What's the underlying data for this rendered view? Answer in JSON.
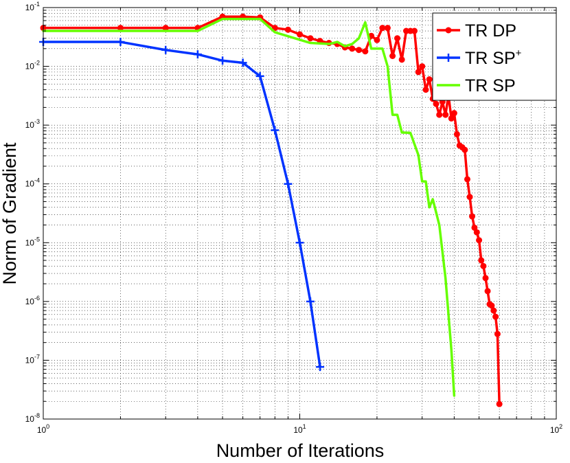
{
  "chart_data": {
    "type": "line",
    "xlabel": "Number of Iterations",
    "ylabel": "Norm of Gradient",
    "xscale": "log",
    "yscale": "log",
    "xlim": [
      1,
      100
    ],
    "ylim": [
      1e-08,
      0.1
    ],
    "grid": true,
    "legend_position": "top-right",
    "x_ticks": [
      {
        "value": 1,
        "base": "10",
        "exp": "0"
      },
      {
        "value": 10,
        "base": "10",
        "exp": "1"
      },
      {
        "value": 100,
        "base": "10",
        "exp": "2"
      }
    ],
    "y_ticks": [
      {
        "value": 1e-08,
        "base": "10",
        "exp": "-8"
      },
      {
        "value": 1e-07,
        "base": "10",
        "exp": "-7"
      },
      {
        "value": 1e-06,
        "base": "10",
        "exp": "-6"
      },
      {
        "value": 1e-05,
        "base": "10",
        "exp": "-5"
      },
      {
        "value": 0.0001,
        "base": "10",
        "exp": "-4"
      },
      {
        "value": 0.001,
        "base": "10",
        "exp": "-3"
      },
      {
        "value": 0.01,
        "base": "10",
        "exp": "-2"
      },
      {
        "value": 0.1,
        "base": "10",
        "exp": "-1"
      }
    ],
    "series": [
      {
        "name": "TR DP",
        "label_main": "TR DP",
        "label_sup": "",
        "color": "#ff0000",
        "marker": "dot",
        "points": [
          [
            1,
            0.045
          ],
          [
            2,
            0.045
          ],
          [
            3,
            0.045
          ],
          [
            4,
            0.045
          ],
          [
            5,
            0.07
          ],
          [
            6,
            0.07
          ],
          [
            7,
            0.068
          ],
          [
            8,
            0.045
          ],
          [
            9,
            0.042
          ],
          [
            10,
            0.035
          ],
          [
            11,
            0.03
          ],
          [
            12,
            0.027
          ],
          [
            13,
            0.025
          ],
          [
            14,
            0.024
          ],
          [
            15,
            0.021
          ],
          [
            16,
            0.02
          ],
          [
            17,
            0.019
          ],
          [
            18,
            0.018
          ],
          [
            19,
            0.033
          ],
          [
            20,
            0.028
          ],
          [
            21,
            0.045
          ],
          [
            22,
            0.045
          ],
          [
            23,
            0.015
          ],
          [
            24,
            0.03
          ],
          [
            25,
            0.013
          ],
          [
            26,
            0.04
          ],
          [
            27,
            0.04
          ],
          [
            28,
            0.04
          ],
          [
            29,
            0.008
          ],
          [
            30,
            0.01
          ],
          [
            31,
            0.004
          ],
          [
            32,
            0.006
          ],
          [
            33,
            0.0028
          ],
          [
            34,
            0.0023
          ],
          [
            35,
            0.0015
          ],
          [
            36,
            0.0025
          ],
          [
            37,
            0.0015
          ],
          [
            38,
            0.0032
          ],
          [
            39,
            0.0013
          ],
          [
            40,
            0.0016
          ],
          [
            41,
            0.0007
          ],
          [
            42,
            0.00045
          ],
          [
            43,
            0.00042
          ],
          [
            44,
            0.00038
          ],
          [
            45,
            0.00012
          ],
          [
            46,
            6e-05
          ],
          [
            47,
            2.8e-05
          ],
          [
            48,
            1.8e-05
          ],
          [
            49,
            1.5e-05
          ],
          [
            50,
            1.1e-05
          ],
          [
            51,
            5e-06
          ],
          [
            52,
            4e-06
          ],
          [
            53,
            2.5e-06
          ],
          [
            54,
            1.5e-06
          ],
          [
            55,
            9e-07
          ],
          [
            56,
            8.5e-07
          ],
          [
            57,
            7e-07
          ],
          [
            58,
            5.5e-07
          ],
          [
            59,
            2.8e-07
          ],
          [
            60,
            1.8e-08
          ]
        ]
      },
      {
        "name": "TR SP+",
        "label_main": "TR SP",
        "label_sup": "+",
        "color": "#0033ff",
        "marker": "plus",
        "points": [
          [
            1,
            0.026
          ],
          [
            2,
            0.026
          ],
          [
            3,
            0.019
          ],
          [
            4,
            0.016
          ],
          [
            5,
            0.0125
          ],
          [
            6,
            0.0115
          ],
          [
            7,
            0.0068
          ],
          [
            8,
            0.00082
          ],
          [
            9,
            0.0001
          ],
          [
            10,
            1e-05
          ],
          [
            11,
            1e-06
          ],
          [
            12,
            7.7e-08
          ]
        ]
      },
      {
        "name": "TR SP",
        "label_main": "TR SP",
        "label_sup": "",
        "color": "#66ff00",
        "marker": "none",
        "points": [
          [
            1,
            0.04
          ],
          [
            4,
            0.04
          ],
          [
            5,
            0.064
          ],
          [
            7,
            0.064
          ],
          [
            8,
            0.038
          ],
          [
            11,
            0.025
          ],
          [
            13,
            0.024
          ],
          [
            14,
            0.026
          ],
          [
            15,
            0.022
          ],
          [
            16,
            0.024
          ],
          [
            17,
            0.03
          ],
          [
            18,
            0.056
          ],
          [
            19,
            0.02
          ],
          [
            20,
            0.02
          ],
          [
            21,
            0.02
          ],
          [
            22,
            0.01
          ],
          [
            23,
            0.0015
          ],
          [
            24,
            0.0015
          ],
          [
            25,
            0.00075
          ],
          [
            27,
            0.00074
          ],
          [
            29,
            0.00031
          ],
          [
            30,
            0.00011
          ],
          [
            31,
            0.00011
          ],
          [
            32,
            4e-05
          ],
          [
            33,
            5.5e-05
          ],
          [
            35,
            2e-05
          ],
          [
            37,
            2.5e-06
          ],
          [
            39,
            1.5e-07
          ],
          [
            40,
            2.5e-08
          ]
        ]
      }
    ]
  }
}
